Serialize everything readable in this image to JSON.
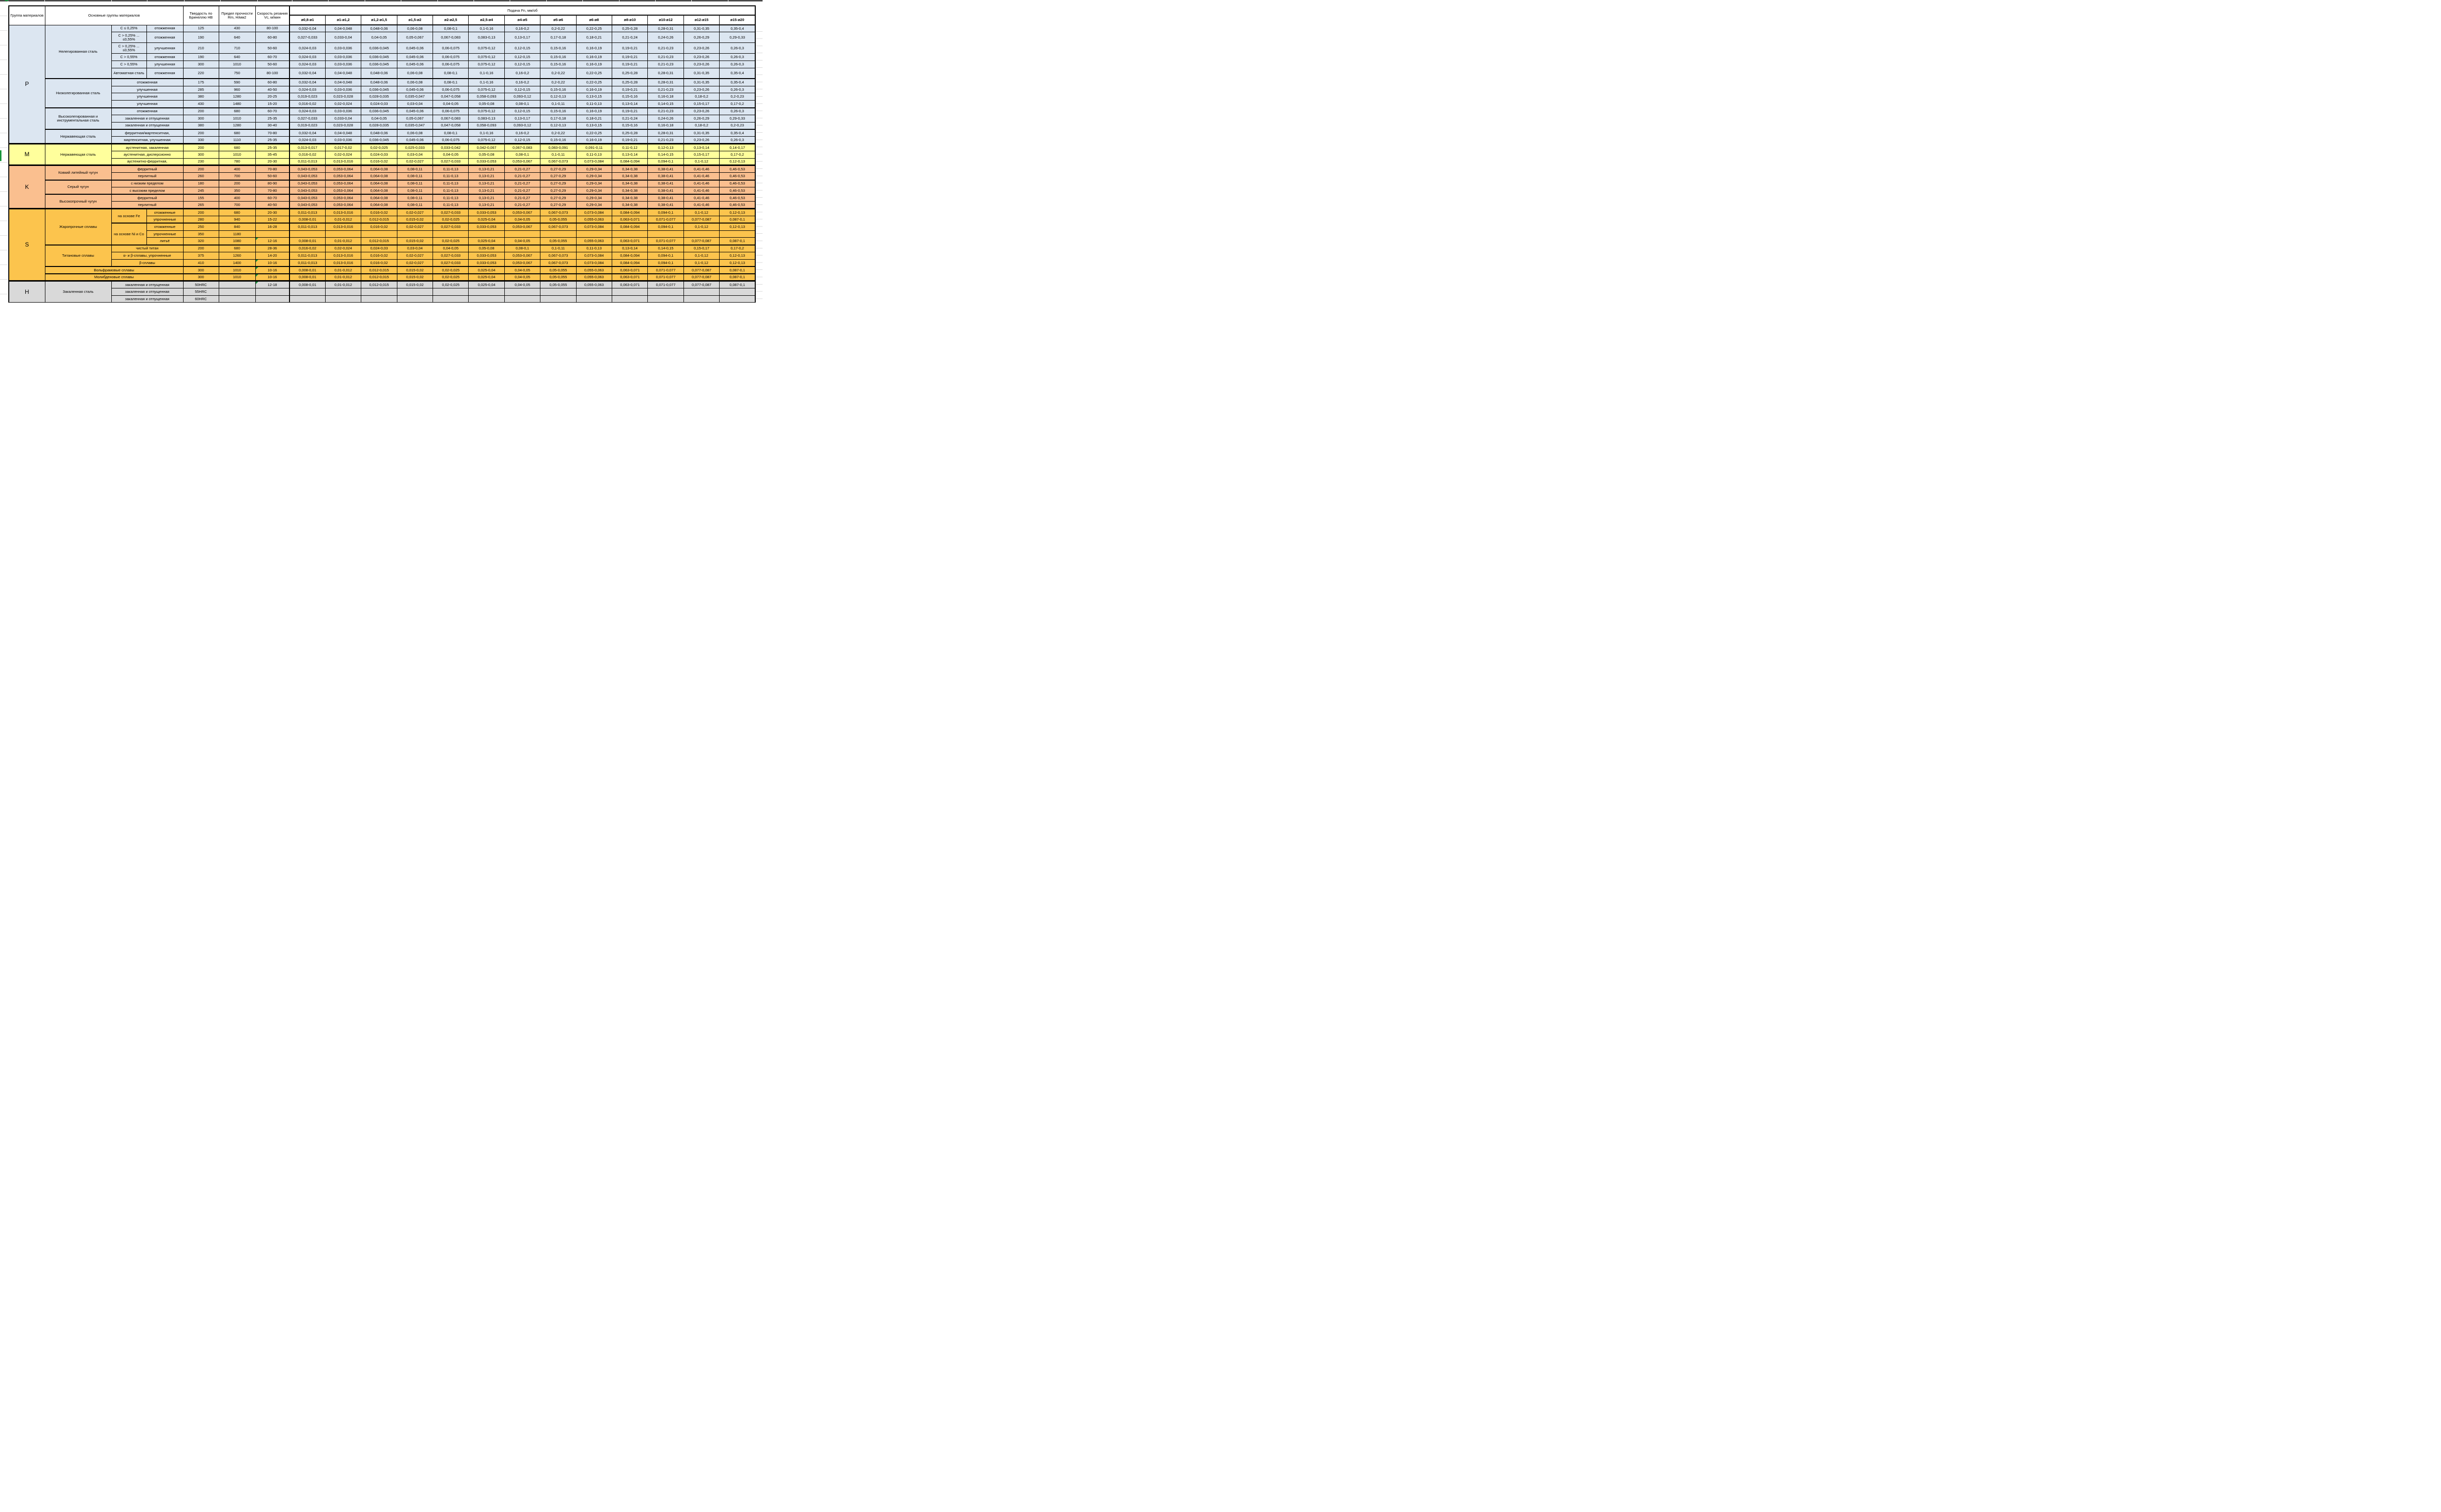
{
  "header": {
    "group": "Группа материалов",
    "materials": "Основные группы материалов",
    "hardness": "Твердость по Бринеллю HB",
    "strength": "Предел прочности Rm, Н/мм2",
    "speed": "Скорость резания Vc, м/мин",
    "feed": "Подача Fn, мм/об",
    "diameters": [
      "ø0,8-ø1",
      "ø1-ø1,2",
      "ø1,2-ø1,5",
      "ø1,5-ø2",
      "ø2-ø2,5",
      "ø2,5-ø4",
      "ø4-ø5",
      "ø5-ø6",
      "ø6-ø8",
      "ø8-ø10",
      "ø10-ø12",
      "ø12-ø15",
      "ø15-ø20"
    ]
  },
  "colors": {
    "p": "#dce6f1",
    "m": "#ffff9c",
    "k": "#fabf8f",
    "s": "#fcc44d",
    "h": "#d9d9d9",
    "marker_green": "#18953c"
  },
  "feed_profiles": {
    "A": [
      "0,032-0,04",
      "0,04-0,048",
      "0,048-0,06",
      "0,06-0,08",
      "0,08-0,1",
      "0,1-0,16",
      "0,16-0,2",
      "0,2-0,22",
      "0,22-0,25",
      "0,25-0,28",
      "0,28-0,31",
      "0,31-0,35",
      "0,35-0,4"
    ],
    "B": [
      "0,027-0,033",
      "0,033-0,04",
      "0,04-0,05",
      "0,05-0,067",
      "0,067-0,083",
      "0,083-0,13",
      "0,13-0,17",
      "0,17-0,18",
      "0,18-0,21",
      "0,21-0,24",
      "0,24-0,26",
      "0,26-0,29",
      "0,29-0,33"
    ],
    "C": [
      "0,024-0,03",
      "0,03-0,036",
      "0,036-0,045",
      "0,045-0,06",
      "0,06-0,075",
      "0,075-0,12",
      "0,12-0,15",
      "0,15-0,16",
      "0,16-0,19",
      "0,19-0,21",
      "0,21-0,23",
      "0,23-0,26",
      "0,26-0,3"
    ],
    "D": [
      "0,019-0,023",
      "0,023-0,028",
      "0,028-0,035",
      "0,035-0,047",
      "0,047-0,058",
      "0,058-0,093",
      "0,093-0,12",
      "0,12-0,13",
      "0,13-0,15",
      "0,15-0,16",
      "0,16-0,18",
      "0,18-0,2",
      "0,2-0,23"
    ],
    "E": [
      "0,016-0,02",
      "0,02-0,024",
      "0,024-0,03",
      "0,03-0,04",
      "0,04-0,05",
      "0,05-0,08",
      "0,08-0,1",
      "0,1-0,11",
      "0,11-0,13",
      "0,13-0,14",
      "0,14-0,15",
      "0,15-0,17",
      "0,17-0,2"
    ],
    "F": [
      "0,013-0,017",
      "0,017-0,02",
      "0,02-0,025",
      "0,025-0,033",
      "0,033-0,042",
      "0,042-0,067",
      "0,067-0,083",
      "0,083-0,091",
      "0,091-0,11",
      "0,11-0,12",
      "0,12-0,13",
      "0,13-0,14",
      "0,14-0,17"
    ],
    "G": [
      "0,011-0,013",
      "0,013-0,016",
      "0,016-0,02",
      "0,02-0,027",
      "0,027-0,033",
      "0,033-0,053",
      "0,053-0,067",
      "0,067-0,073",
      "0,073-0,084",
      "0,084-0,094",
      "0,094-0,1",
      "0,1-0,12",
      "0,12-0,13"
    ],
    "H": [
      "0,043-0,053",
      "0,053-0,064",
      "0,064-0,08",
      "0,08-0,11",
      "0,11-0,13",
      "0,13-0,21",
      "0,21-0,27",
      "0,27-0,29",
      "0,29-0,34",
      "0,34-0,38",
      "0,38-0,41",
      "0,41-0,46",
      "0,46-0,53"
    ],
    "I": [
      "0,008-0,01",
      "0,01-0,012",
      "0,012-0,015",
      "0,015-0,02",
      "0,02-0,025",
      "0,025-0,04",
      "0,04-0,05",
      "0,05-0,055",
      "0,055-0,063",
      "0,063-0,071",
      "0,071-0,077",
      "0,077-0,087",
      "0,087-0,1"
    ],
    "none": [
      "",
      "",
      "",
      "",
      "",
      "",
      "",
      "",
      "",
      "",
      "",
      "",
      ""
    ]
  },
  "sections": [
    {
      "group": "P",
      "key": "p",
      "blocks": [
        {
          "material": "Нелегированная сталь",
          "rows": [
            {
              "sub1": {
                "label": "C ≤ 0,25%",
                "span": 1
              },
              "sub2": "отожженная",
              "hb": "125",
              "rm": "430",
              "vc": "80-100",
              "profile": "A"
            },
            {
              "sub1": {
                "label": "C > 0,25% ... ≤0,55%",
                "span": 1
              },
              "sub2": "отожженная",
              "hb": "190",
              "rm": "640",
              "vc": "60-80",
              "profile": "B",
              "tall": true
            },
            {
              "sub1": {
                "label": "C > 0,25% ... ≤0,55%",
                "span": 1
              },
              "sub2": "улучшенная",
              "hb": "210",
              "rm": "710",
              "vc": "50-60",
              "profile": "C",
              "tall": true
            },
            {
              "sub1": {
                "label": "C > 0,55%",
                "span": 1
              },
              "sub2": "отожженная",
              "hb": "190",
              "rm": "640",
              "vc": "60-70",
              "profile": "C"
            },
            {
              "sub1": {
                "label": "C > 0,55%",
                "span": 1
              },
              "sub2": "улучшенная",
              "hb": "300",
              "rm": "1010",
              "vc": "50-60",
              "profile": "C"
            },
            {
              "sub1": {
                "label": "Автоматная сталь",
                "span": 1
              },
              "sub2": "отожженная",
              "hb": "220",
              "rm": "750",
              "vc": "80-100",
              "profile": "A",
              "tall": true
            }
          ]
        },
        {
          "material": "Низколегированная сталь",
          "rows": [
            {
              "sub_merged": "отожженная",
              "hb": "175",
              "rm": "590",
              "vc": "60-80",
              "profile": "A"
            },
            {
              "sub_merged": "улучшенная",
              "hb": "285",
              "rm": "960",
              "vc": "40-50",
              "profile": "C"
            },
            {
              "sub_merged": "улучшенная",
              "hb": "380",
              "rm": "1280",
              "vc": "20-25",
              "profile": "D"
            },
            {
              "sub_merged": "улучшенная",
              "hb": "430",
              "rm": "1480",
              "vc": "15-20",
              "profile": "E"
            }
          ]
        },
        {
          "material": "Высоколегированная и инструментальная сталь",
          "rows": [
            {
              "sub_merged": "отожженная",
              "hb": "200",
              "rm": "680",
              "vc": "60-70",
              "profile": "C"
            },
            {
              "sub_merged": "закаленная и отпущенная",
              "hb": "300",
              "rm": "1010",
              "vc": "25-35",
              "profile": "B"
            },
            {
              "sub_merged": "закаленная и отпущенная",
              "hb": "380",
              "rm": "1280",
              "vc": "30-40",
              "profile": "D"
            }
          ]
        },
        {
          "material": "Нержавеющая сталь",
          "rows": [
            {
              "sub_merged": "ферритная/мартенситная,",
              "hb": "200",
              "rm": "680",
              "vc": "70-80",
              "profile": "A"
            },
            {
              "sub_merged": "мартенситная, улучшенная",
              "hb": "330",
              "rm": "1110",
              "vc": "25-35",
              "profile": "C"
            }
          ]
        }
      ]
    },
    {
      "group": "M",
      "key": "m",
      "blocks": [
        {
          "material": "Нержавеющая сталь",
          "rows": [
            {
              "sub_merged": "аустенитная, закаленная",
              "hb": "200",
              "rm": "680",
              "vc": "25-35",
              "profile": "F"
            },
            {
              "sub_merged": "аустенитная, дисперсионно",
              "hb": "300",
              "rm": "1010",
              "vc": "35-45",
              "profile": "E"
            },
            {
              "sub_merged": "аустенитно-ферритная,",
              "hb": "230",
              "rm": "780",
              "vc": "20-30",
              "profile": "G"
            }
          ]
        }
      ]
    },
    {
      "group": "K",
      "key": "k",
      "blocks": [
        {
          "material": "Ковкий литейный чугун",
          "rows": [
            {
              "sub_merged": "ферритный",
              "hb": "200",
              "rm": "400",
              "vc": "70-80",
              "profile": "H"
            },
            {
              "sub_merged": "перлитный",
              "hb": "260",
              "rm": "700",
              "vc": "50-60",
              "profile": "H"
            }
          ]
        },
        {
          "material": "Серый чугун",
          "rows": [
            {
              "sub_merged": "с низким пределом",
              "hb": "180",
              "rm": "200",
              "vc": "80-90",
              "profile": "H"
            },
            {
              "sub_merged": "с высоким пределом",
              "hb": "245",
              "rm": "350",
              "vc": "70-80",
              "profile": "H"
            }
          ]
        },
        {
          "material": "Высокопрочный чугун",
          "rows": [
            {
              "sub_merged": "ферритный",
              "hb": "155",
              "rm": "400",
              "vc": "60-70",
              "profile": "H"
            },
            {
              "sub_merged": "перлитный",
              "hb": "265",
              "rm": "700",
              "vc": "40-50",
              "profile": "H"
            }
          ]
        }
      ]
    },
    {
      "group": "S",
      "key": "s",
      "blocks": [
        {
          "material": "Жаропрочные сплавы",
          "rows": [
            {
              "sub1": {
                "label": "на основе Fe",
                "span": 2
              },
              "sub2": "отожженные",
              "hb": "200",
              "rm": "680",
              "vc": "20-30",
              "profile": "G"
            },
            {
              "sub2": "упрочненные",
              "hb": "280",
              "rm": "940",
              "vc": "15-22",
              "profile": "I"
            },
            {
              "sub1": {
                "label": "на основе Ni и Co",
                "span": 3
              },
              "sub2": "отожженные",
              "hb": "250",
              "rm": "840",
              "vc": "16-28",
              "profile": "G",
              "substart": true
            },
            {
              "sub2": "упрочненные",
              "hb": "350",
              "rm": "1180",
              "vc": "",
              "profile": "none"
            },
            {
              "sub2": "литьё",
              "hb": "320",
              "rm": "1080",
              "vc": "12-16",
              "profile": "I",
              "vc_mark": true
            }
          ]
        },
        {
          "material": "Титановые сплавы",
          "rows": [
            {
              "sub_merged": "чистый титан",
              "hb": "200",
              "rm": "680",
              "vc": "28-36",
              "profile": "E"
            },
            {
              "sub_merged": "α- и β-сплавы, упрочненные",
              "hb": "375",
              "rm": "1260",
              "vc": "14-20",
              "profile": "G"
            },
            {
              "sub_merged": "β-сплавы",
              "hb": "410",
              "rm": "1400",
              "vc": "10-16",
              "profile": "G",
              "vc_mark": true
            }
          ]
        },
        {
          "material": "Вольфрамовые сплавы",
          "wide": true,
          "rows": [
            {
              "hb": "300",
              "rm": "1010",
              "vc": "10-16",
              "profile": "I",
              "vc_mark": true
            }
          ]
        },
        {
          "material": "Молибденовые сплавы",
          "wide": true,
          "rows": [
            {
              "hb": "300",
              "rm": "1010",
              "vc": "10-16",
              "profile": "I",
              "vc_mark": true
            }
          ]
        }
      ]
    },
    {
      "group": "H",
      "key": "h",
      "blocks": [
        {
          "material": "Закаленная сталь",
          "rows": [
            {
              "sub_merged": "закаленная и отпущенная",
              "hb": "50HRC",
              "rm": "",
              "vc": "12-18",
              "profile": "I",
              "vc_mark": true
            },
            {
              "sub_merged": "закаленная и отпущенная",
              "hb": "55HRC",
              "rm": "",
              "vc": "",
              "profile": "none"
            },
            {
              "sub_merged": "закаленная и отпущенная",
              "hb": "60HRC",
              "rm": "",
              "vc": "",
              "profile": "none"
            }
          ]
        }
      ]
    }
  ]
}
